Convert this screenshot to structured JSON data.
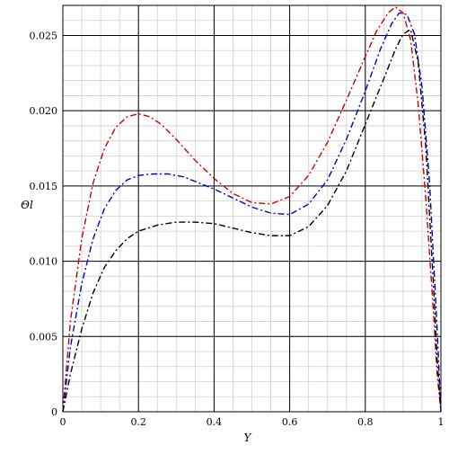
{
  "chart_data": {
    "type": "line",
    "xlabel": "Y",
    "ylabel": "Θl",
    "xlim": [
      0,
      1
    ],
    "ylim": [
      0,
      0.027
    ],
    "x_ticks": [
      "0",
      "0.2",
      "0.4",
      "0.6",
      "0.8",
      "1"
    ],
    "y_ticks": [
      "0",
      "0.005",
      "0.010",
      "0.015",
      "0.020",
      "0.025"
    ],
    "grid": "on",
    "series": [
      {
        "color": "#cc0000",
        "style": "dash-dot",
        "x": [
          0.0,
          0.02,
          0.05,
          0.08,
          0.11,
          0.14,
          0.17,
          0.2,
          0.23,
          0.26,
          0.3,
          0.35,
          0.4,
          0.45,
          0.5,
          0.55,
          0.6,
          0.65,
          0.7,
          0.75,
          0.8,
          0.83,
          0.86,
          0.88,
          0.9,
          0.92,
          0.94,
          0.96,
          0.98,
          0.99,
          1.0
        ],
        "values": [
          0.0,
          0.006,
          0.0115,
          0.0152,
          0.0175,
          0.0189,
          0.0196,
          0.0198,
          0.0196,
          0.0191,
          0.0181,
          0.0167,
          0.0155,
          0.0145,
          0.0139,
          0.0138,
          0.0143,
          0.0157,
          0.0179,
          0.0207,
          0.0236,
          0.0253,
          0.0265,
          0.0269,
          0.0265,
          0.0247,
          0.0204,
          0.0142,
          0.0067,
          0.0025,
          0.0
        ]
      },
      {
        "color": "#0000cc",
        "style": "dash-dot",
        "x": [
          0.0,
          0.02,
          0.05,
          0.08,
          0.11,
          0.14,
          0.17,
          0.2,
          0.24,
          0.28,
          0.32,
          0.36,
          0.4,
          0.45,
          0.5,
          0.55,
          0.6,
          0.65,
          0.7,
          0.75,
          0.8,
          0.84,
          0.87,
          0.89,
          0.91,
          0.93,
          0.95,
          0.97,
          0.99,
          1.0
        ],
        "values": [
          0.0,
          0.0043,
          0.0085,
          0.0115,
          0.0135,
          0.0147,
          0.0154,
          0.0157,
          0.0158,
          0.0158,
          0.0156,
          0.0152,
          0.0148,
          0.0142,
          0.0136,
          0.0132,
          0.0131,
          0.0138,
          0.0154,
          0.0181,
          0.0213,
          0.0241,
          0.0258,
          0.0265,
          0.0264,
          0.0251,
          0.0216,
          0.0152,
          0.0055,
          0.0
        ]
      },
      {
        "color": "#000000",
        "style": "dash-dot",
        "x": [
          0.0,
          0.02,
          0.05,
          0.08,
          0.11,
          0.14,
          0.17,
          0.2,
          0.25,
          0.3,
          0.35,
          0.4,
          0.45,
          0.5,
          0.55,
          0.6,
          0.65,
          0.7,
          0.75,
          0.8,
          0.85,
          0.88,
          0.9,
          0.92,
          0.94,
          0.96,
          0.98,
          0.99,
          1.0
        ],
        "values": [
          0.0,
          0.0025,
          0.0055,
          0.0079,
          0.0096,
          0.0107,
          0.0115,
          0.012,
          0.0124,
          0.0126,
          0.0126,
          0.0125,
          0.0122,
          0.0119,
          0.0117,
          0.0117,
          0.0123,
          0.0137,
          0.016,
          0.0191,
          0.0222,
          0.0241,
          0.0251,
          0.0254,
          0.0232,
          0.0176,
          0.0085,
          0.0035,
          0.0
        ]
      }
    ]
  }
}
